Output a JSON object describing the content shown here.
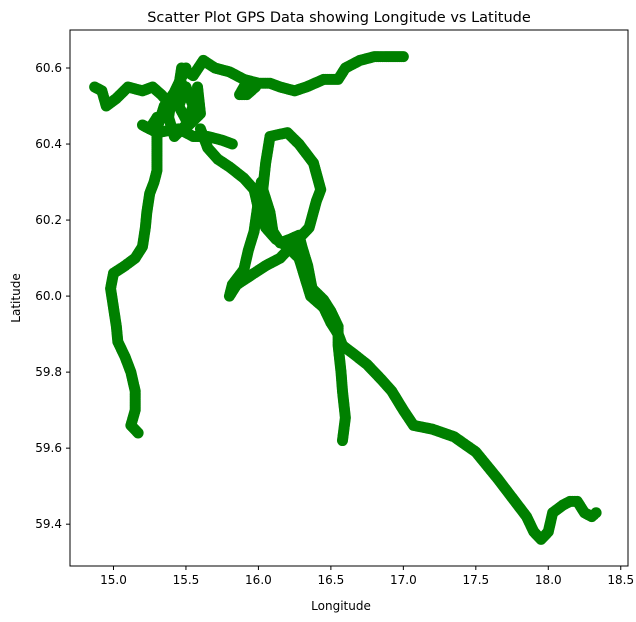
{
  "chart_data": {
    "type": "scatter",
    "title": "Scatter Plot GPS Data showing Longitude vs Latitude",
    "xlabel": "Longitude",
    "ylabel": "Latitude",
    "xlim": [
      14.7,
      18.55
    ],
    "ylim": [
      59.29,
      60.7
    ],
    "xticks": [
      15.0,
      15.5,
      16.0,
      16.5,
      17.0,
      17.5,
      18.0,
      18.5
    ],
    "xtick_labels": [
      "15.0",
      "15.5",
      "16.0",
      "16.5",
      "17.0",
      "17.5",
      "18.0",
      "18.5"
    ],
    "yticks": [
      59.4,
      59.6,
      59.8,
      60.0,
      60.2,
      60.4,
      60.6
    ],
    "ytick_labels": [
      "59.4",
      "59.6",
      "59.8",
      "60.0",
      "60.2",
      "60.4",
      "60.6"
    ],
    "grid": false,
    "marker_color": "#008000",
    "series": [
      {
        "points": [
          [
            14.87,
            60.55
          ],
          [
            14.92,
            60.54
          ],
          [
            14.95,
            60.5
          ],
          [
            15.02,
            60.52
          ],
          [
            15.1,
            60.55
          ],
          [
            15.2,
            60.54
          ],
          [
            15.27,
            60.55
          ],
          [
            15.33,
            60.53
          ],
          [
            15.4,
            60.5
          ],
          [
            15.45,
            60.55
          ],
          [
            15.47,
            60.6
          ],
          [
            15.55,
            60.58
          ],
          [
            15.62,
            60.62
          ],
          [
            15.7,
            60.6
          ],
          [
            15.8,
            60.59
          ],
          [
            15.9,
            60.57
          ],
          [
            16.0,
            60.56
          ],
          [
            16.08,
            60.56
          ],
          [
            16.15,
            60.55
          ],
          [
            16.25,
            60.54
          ],
          [
            16.33,
            60.55
          ],
          [
            16.45,
            60.57
          ],
          [
            16.55,
            60.57
          ],
          [
            16.6,
            60.6
          ],
          [
            16.7,
            60.62
          ],
          [
            16.8,
            60.63
          ],
          [
            16.9,
            60.63
          ],
          [
            17.0,
            60.63
          ]
        ]
      },
      {
        "points": [
          [
            15.95,
            60.56
          ],
          [
            15.9,
            60.55
          ],
          [
            15.87,
            60.53
          ],
          [
            15.92,
            60.53
          ],
          [
            15.98,
            60.55
          ]
        ]
      },
      {
        "points": [
          [
            15.5,
            60.6
          ],
          [
            15.45,
            60.56
          ],
          [
            15.4,
            60.52
          ],
          [
            15.38,
            60.47
          ],
          [
            15.42,
            60.42
          ],
          [
            15.5,
            60.45
          ],
          [
            15.55,
            60.5
          ],
          [
            15.5,
            60.55
          ],
          [
            15.45,
            60.5
          ],
          [
            15.52,
            60.45
          ],
          [
            15.6,
            60.48
          ],
          [
            15.58,
            60.55
          ]
        ]
      },
      {
        "points": [
          [
            15.3,
            60.47
          ],
          [
            15.25,
            60.44
          ],
          [
            15.2,
            60.45
          ],
          [
            15.3,
            60.43
          ],
          [
            15.45,
            60.44
          ],
          [
            15.55,
            60.42
          ],
          [
            15.65,
            60.42
          ],
          [
            15.75,
            60.41
          ],
          [
            15.82,
            60.4
          ]
        ]
      },
      {
        "points": [
          [
            15.47,
            60.56
          ],
          [
            15.35,
            60.5
          ],
          [
            15.3,
            60.44
          ],
          [
            15.3,
            60.38
          ],
          [
            15.3,
            60.33
          ],
          [
            15.28,
            60.3
          ],
          [
            15.25,
            60.27
          ],
          [
            15.23,
            60.22
          ],
          [
            15.22,
            60.18
          ],
          [
            15.2,
            60.13
          ],
          [
            15.15,
            60.1
          ],
          [
            15.08,
            60.08
          ],
          [
            15.0,
            60.06
          ],
          [
            14.98,
            60.02
          ],
          [
            15.0,
            59.97
          ],
          [
            15.02,
            59.92
          ],
          [
            15.03,
            59.88
          ],
          [
            15.08,
            59.84
          ],
          [
            15.12,
            59.8
          ],
          [
            15.15,
            59.75
          ],
          [
            15.15,
            59.7
          ],
          [
            15.12,
            59.66
          ],
          [
            15.17,
            59.64
          ]
        ]
      },
      {
        "points": [
          [
            15.6,
            60.44
          ],
          [
            15.65,
            60.39
          ],
          [
            15.72,
            60.36
          ],
          [
            15.8,
            60.34
          ],
          [
            15.9,
            60.31
          ],
          [
            15.97,
            60.28
          ],
          [
            16.0,
            60.23
          ],
          [
            16.05,
            60.18
          ],
          [
            16.12,
            60.15
          ],
          [
            16.2,
            60.13
          ],
          [
            16.28,
            60.1
          ],
          [
            16.32,
            60.05
          ],
          [
            16.36,
            60.0
          ],
          [
            16.45,
            59.97
          ],
          [
            16.5,
            59.93
          ],
          [
            16.55,
            59.9
          ],
          [
            16.58,
            59.87
          ],
          [
            16.65,
            59.85
          ],
          [
            16.75,
            59.82
          ],
          [
            16.85,
            59.78
          ],
          [
            16.92,
            59.75
          ],
          [
            17.0,
            59.7
          ],
          [
            17.07,
            59.66
          ],
          [
            17.2,
            59.65
          ],
          [
            17.35,
            59.63
          ],
          [
            17.5,
            59.59
          ],
          [
            17.65,
            59.52
          ],
          [
            17.75,
            59.47
          ],
          [
            17.85,
            59.42
          ],
          [
            17.9,
            59.38
          ],
          [
            17.95,
            59.36
          ],
          [
            18.0,
            59.38
          ],
          [
            18.03,
            59.43
          ],
          [
            18.1,
            59.45
          ],
          [
            18.15,
            59.46
          ],
          [
            18.2,
            59.46
          ],
          [
            18.25,
            59.43
          ],
          [
            18.3,
            59.42
          ],
          [
            18.33,
            59.43
          ]
        ]
      },
      {
        "points": [
          [
            16.58,
            59.62
          ],
          [
            16.6,
            59.68
          ],
          [
            16.58,
            59.75
          ],
          [
            16.57,
            59.8
          ],
          [
            16.55,
            59.87
          ],
          [
            16.55,
            59.92
          ],
          [
            16.5,
            59.96
          ],
          [
            16.45,
            59.99
          ],
          [
            16.37,
            60.02
          ],
          [
            16.34,
            60.08
          ],
          [
            16.3,
            60.13
          ],
          [
            16.28,
            60.16
          ],
          [
            16.22,
            60.15
          ],
          [
            16.15,
            60.14
          ],
          [
            16.1,
            60.17
          ],
          [
            16.08,
            60.22
          ],
          [
            16.03,
            60.28
          ],
          [
            16.05,
            60.35
          ],
          [
            16.08,
            60.42
          ],
          [
            16.2,
            60.43
          ],
          [
            16.28,
            60.4
          ],
          [
            16.38,
            60.35
          ],
          [
            16.43,
            60.28
          ],
          [
            16.4,
            60.25
          ],
          [
            16.35,
            60.18
          ],
          [
            16.25,
            60.14
          ],
          [
            16.15,
            60.1
          ],
          [
            16.05,
            60.08
          ],
          [
            15.93,
            60.05
          ],
          [
            15.85,
            60.03
          ],
          [
            15.8,
            60.0
          ],
          [
            15.82,
            60.03
          ],
          [
            15.9,
            60.07
          ],
          [
            15.93,
            60.12
          ],
          [
            15.97,
            60.17
          ],
          [
            16.0,
            60.25
          ],
          [
            16.02,
            60.3
          ]
        ]
      }
    ]
  }
}
